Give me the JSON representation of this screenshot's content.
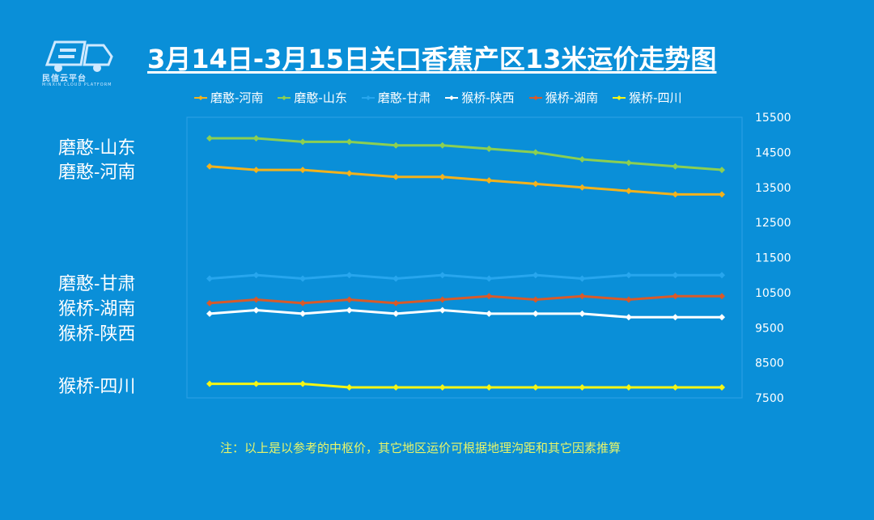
{
  "logo": {
    "name": "民信云平台",
    "sub": "MINXIN CLOUD PLATFORM",
    "icon": "truck-icon"
  },
  "chart_data": {
    "type": "line",
    "title": "3月14日-3月15日关口香蕉产区13米运价走势图",
    "xlabel": "",
    "ylabel": "",
    "ylim": [
      7500,
      15500
    ],
    "yticks": [
      7500,
      8500,
      9500,
      10500,
      11500,
      12500,
      13500,
      14500,
      15500
    ],
    "points": 12,
    "legend_position": "top",
    "series": [
      {
        "name": "磨憨-河南",
        "color": "#f3b21c",
        "values": [
          14100,
          14000,
          14000,
          13900,
          13800,
          13800,
          13700,
          13600,
          13500,
          13400,
          13300,
          13300
        ]
      },
      {
        "name": "磨憨-山东",
        "color": "#8ccf52",
        "values": [
          14900,
          14900,
          14800,
          14800,
          14700,
          14700,
          14600,
          14500,
          14300,
          14200,
          14100,
          14000
        ]
      },
      {
        "name": "磨憨-甘肃",
        "color": "#27a6ee",
        "values": [
          10900,
          11000,
          10900,
          11000,
          10900,
          11000,
          10900,
          11000,
          10900,
          11000,
          11000,
          11000
        ]
      },
      {
        "name": "猴桥-陕西",
        "color": "#ffffff",
        "values": [
          9900,
          10000,
          9900,
          10000,
          9900,
          10000,
          9900,
          9900,
          9900,
          9800,
          9800,
          9800
        ]
      },
      {
        "name": "猴桥-湖南",
        "color": "#d85a2a",
        "values": [
          10200,
          10300,
          10200,
          10300,
          10200,
          10300,
          10400,
          10300,
          10400,
          10300,
          10400,
          10400
        ]
      },
      {
        "name": "猴桥-四川",
        "color": "#f5f514",
        "values": [
          7900,
          7900,
          7900,
          7800,
          7800,
          7800,
          7800,
          7800,
          7800,
          7800,
          7800,
          7800
        ]
      }
    ]
  },
  "left_labels": [
    "磨憨-山东",
    "磨憨-河南",
    "磨憨-甘肃",
    "猴桥-湖南",
    "猴桥-陕西",
    "猴桥-四川"
  ],
  "note": "注：以上是以参考的中枢价，其它地区运价可根据地理沟距和其它因素推算"
}
